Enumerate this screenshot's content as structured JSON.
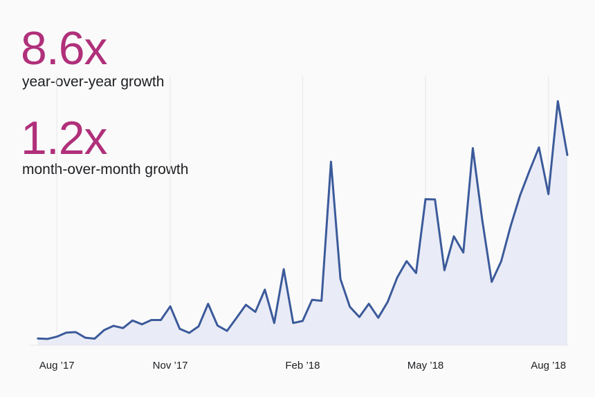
{
  "stats": [
    {
      "value": "8.6x",
      "caption": "year-over-year growth"
    },
    {
      "value": "1.2x",
      "caption": "month-over-month growth"
    }
  ],
  "colors": {
    "accent": "#b0307a",
    "line": "#3b5a9a",
    "area": "#e9ebf6",
    "grid": "#e6e6e9",
    "text": "#1c1e21"
  },
  "chart_data": {
    "type": "area",
    "title": "",
    "xlabel": "",
    "ylabel": "",
    "ylim": [
      0,
      100
    ],
    "grid": true,
    "legend": "none",
    "x_ticks": [
      "Aug ’17",
      "Nov ’17",
      "Feb ’18",
      "May ’18",
      "Aug ’18"
    ],
    "x_tick_weeks": [
      2,
      14,
      28,
      41,
      54
    ],
    "x_range": [
      -0.5,
      56
    ],
    "series": [
      {
        "name": "growth",
        "weeks": [
          0,
          1,
          2,
          3,
          4,
          5,
          6,
          7,
          8,
          9,
          10,
          11,
          12,
          13,
          14,
          15,
          16,
          17,
          18,
          19,
          20,
          21,
          22,
          23,
          24,
          25,
          26,
          27,
          28,
          29,
          30,
          31,
          32,
          33,
          34,
          35,
          36,
          37,
          38,
          39,
          40,
          41,
          42,
          43,
          44,
          45,
          46,
          47,
          48,
          49,
          50,
          51,
          52,
          53,
          54,
          55,
          56
        ],
        "values": [
          0.5,
          0.3,
          1.2,
          2.8,
          3.0,
          0.8,
          0.4,
          3.8,
          5.5,
          4.6,
          7.6,
          6.1,
          7.8,
          7.8,
          13.2,
          4.3,
          2.7,
          5.3,
          14.2,
          5.6,
          3.5,
          8.6,
          13.8,
          11.0,
          19.8,
          6.6,
          27.9,
          6.6,
          7.4,
          15.8,
          15.4,
          70.4,
          24.0,
          13.0,
          9.0,
          14.2,
          8.7,
          15.0,
          24.6,
          31.1,
          26.4,
          55.6,
          55.5,
          27.5,
          40.9,
          34.5,
          75.8,
          47.4,
          22.9,
          31.0,
          44.9,
          57.1,
          66.8,
          76.1,
          57.6,
          94.4,
          73.1
        ]
      }
    ]
  }
}
